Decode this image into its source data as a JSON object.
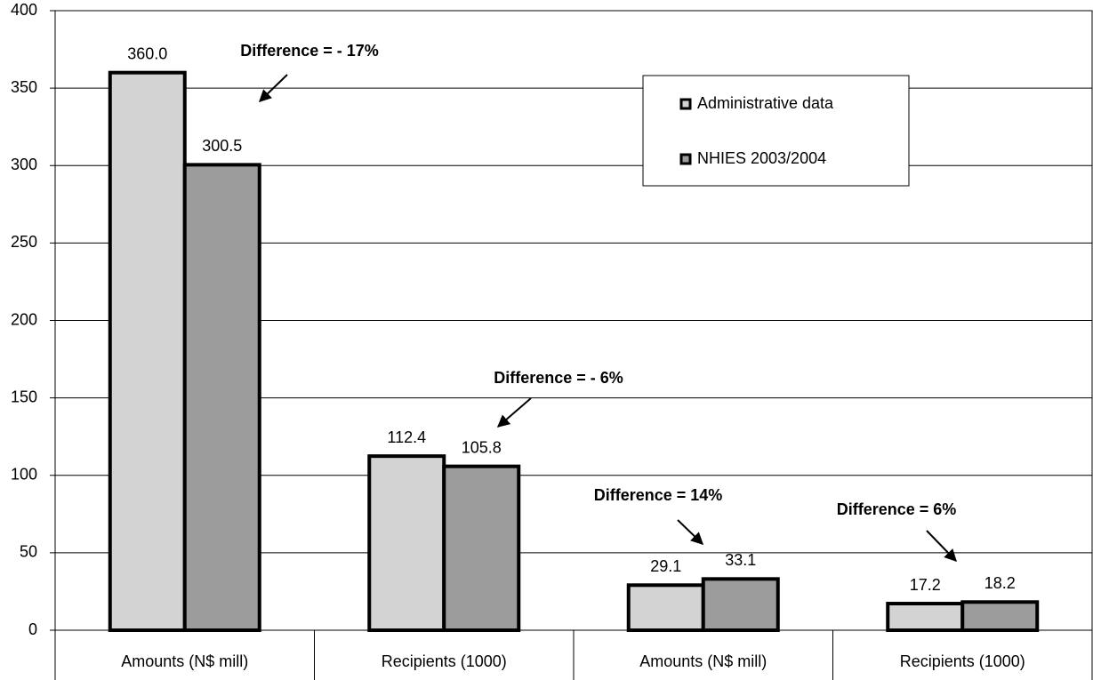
{
  "chart_data": {
    "type": "bar",
    "categories": [
      "Amounts (N$ mill)",
      "Recipients (1000)",
      "Amounts (N$ mill)",
      "Recipients (1000)"
    ],
    "series": [
      {
        "name": "Administrative data",
        "color": "#d3d3d3",
        "values": [
          360.0,
          112.4,
          29.1,
          17.2
        ],
        "value_labels": [
          "360.0",
          "112.4",
          "29.1",
          "17.2"
        ]
      },
      {
        "name": "NHIES 2003/2004",
        "color": "#9c9c9c",
        "values": [
          300.5,
          105.8,
          33.1,
          18.2
        ],
        "value_labels": [
          "300.5",
          "105.8",
          "33.1",
          "18.2"
        ]
      }
    ],
    "annotations": [
      "Difference = - 17%",
      "Difference = - 6%",
      "Difference = 14%",
      "Difference = 6%"
    ],
    "ylim": [
      0,
      400
    ],
    "yticks": [
      0,
      50,
      100,
      150,
      200,
      250,
      300,
      350,
      400
    ],
    "grid": true,
    "legend": "upper right"
  }
}
